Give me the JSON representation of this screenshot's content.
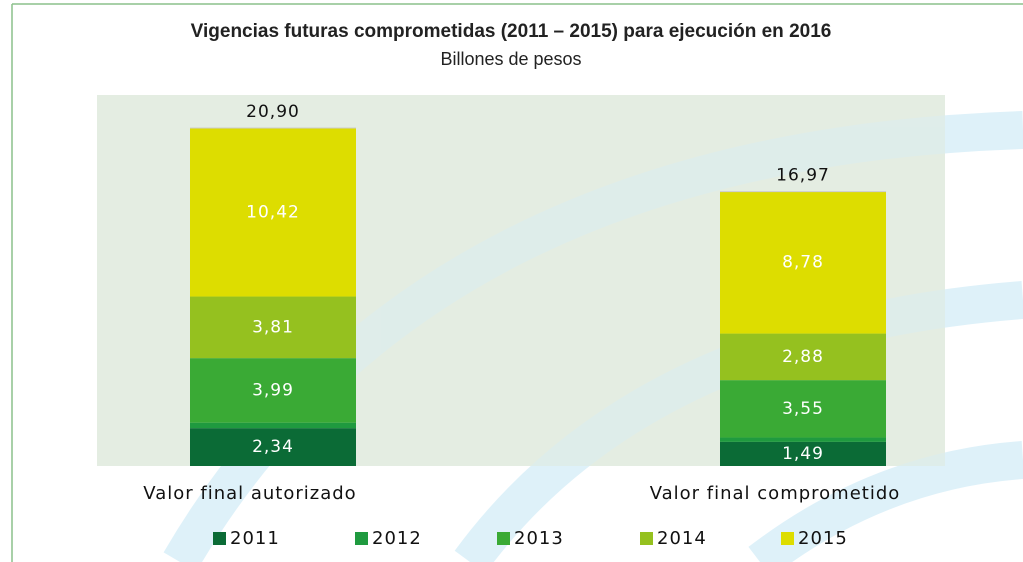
{
  "chart_data": {
    "type": "stacked-bar",
    "title": "Vigencias futuras comprometidas (2011 – 2015) para ejecución en 2016",
    "subtitle": "Billones de pesos",
    "categories": [
      "Valor final autorizado",
      "Valor final comprometido"
    ],
    "series": [
      {
        "name": "2011",
        "color": "#0b6b36",
        "values": [
          2.34,
          1.49
        ],
        "value_labels": [
          "2,34",
          "1,49"
        ]
      },
      {
        "name": "2012",
        "color": "#1f9a3f",
        "values": [
          0.34,
          0.27
        ],
        "value_labels": [
          null,
          null
        ]
      },
      {
        "name": "2013",
        "color": "#3aaa35",
        "values": [
          3.99,
          3.55
        ],
        "value_labels": [
          "3,99",
          "3,55"
        ]
      },
      {
        "name": "2014",
        "color": "#95c11f",
        "values": [
          3.81,
          2.88
        ],
        "value_labels": [
          "3,81",
          "2,88"
        ]
      },
      {
        "name": "2015",
        "color": "#dddd00",
        "values": [
          10.42,
          8.78
        ],
        "value_labels": [
          "10,42",
          "8,78"
        ]
      }
    ],
    "totals": [
      20.9,
      16.97
    ],
    "total_labels": [
      "20,90",
      "16,97"
    ],
    "legend": "bottom"
  }
}
